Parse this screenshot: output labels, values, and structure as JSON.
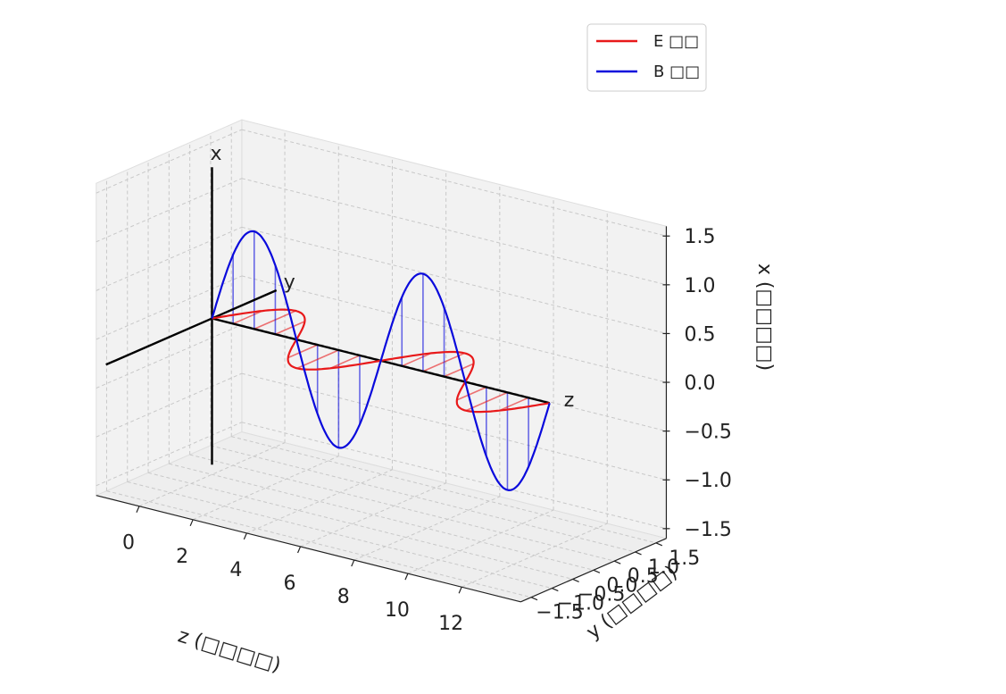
{
  "chart_data": {
    "type": "line",
    "projection": "3d",
    "title": "",
    "xlabel": "z (□□□□)",
    "ylabel": "y (□□□□)",
    "zlabel": "x (□□□□)",
    "xlim": [
      0,
      12.6
    ],
    "ylim": [
      -1.5,
      1.5
    ],
    "zlim": [
      -1.5,
      1.5
    ],
    "xticks": [
      "0",
      "2",
      "4",
      "6",
      "8",
      "10",
      "12"
    ],
    "yticks": [
      "−1.5",
      "−1.0",
      "−0.5",
      "0.0",
      "0.5",
      "1.0",
      "1.5"
    ],
    "zticks": [
      "−1.5",
      "−1.0",
      "−0.5",
      "0.0",
      "0.5",
      "1.0",
      "1.5"
    ],
    "grid": true,
    "legend_position": "top-right",
    "axis_line_labels": {
      "x": "x",
      "y": "y",
      "z": "z"
    },
    "series": [
      {
        "name": "E □□",
        "color": "#e8191a",
        "amplitude": 1.0,
        "wavelength": 6.283,
        "component": "y",
        "z_range": [
          0,
          12.566
        ]
      },
      {
        "name": "B □□",
        "color": "#0a0adc",
        "amplitude": 1.0,
        "wavelength": 6.283,
        "component": "x",
        "z_range": [
          0,
          12.566
        ]
      }
    ],
    "annotations": "vertical stems drawn from z-axis to each wave at regular z intervals"
  }
}
